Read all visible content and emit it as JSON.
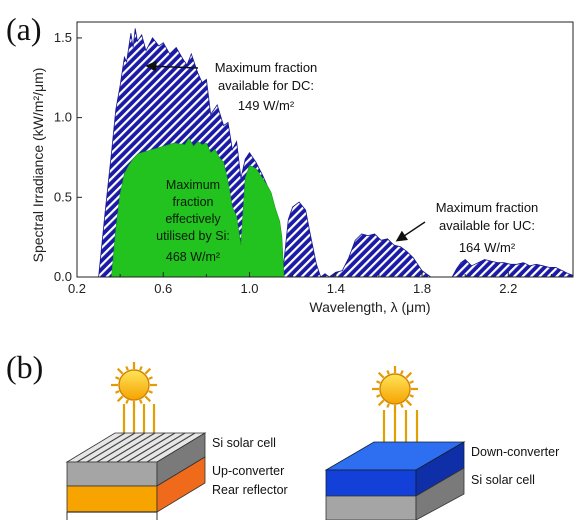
{
  "panel_a": {
    "label": "(a)"
  },
  "panel_b": {
    "label": "(b)"
  },
  "chart_data": {
    "type": "area",
    "xlabel": "Wavelength, λ (μm)",
    "ylabel": "Spectral Irradiance (kW/m²/μm)",
    "xlim": [
      0.2,
      2.5
    ],
    "ylim": [
      0.0,
      1.6
    ],
    "x_ticks": [
      "0.2",
      "0.6",
      "1.0",
      "1.4",
      "1.8",
      "2.2"
    ],
    "x_tick_values": [
      0.2,
      0.6,
      1.0,
      1.4,
      1.8,
      2.2
    ],
    "y_ticks": [
      "0.0",
      "0.5",
      "1.0",
      "1.5"
    ],
    "y_tick_values": [
      0.0,
      0.5,
      1.0,
      1.5
    ],
    "grid": false,
    "colors": {
      "total": "#1a1aa6",
      "si": "#22c31f",
      "hatch": "#ffffff"
    },
    "series": [
      {
        "x": [
          0.3,
          0.33,
          0.36,
          0.38,
          0.4,
          0.42,
          0.43,
          0.45,
          0.46,
          0.47,
          0.48,
          0.5,
          0.52,
          0.55,
          0.58,
          0.6,
          0.63,
          0.66,
          0.69,
          0.71,
          0.73,
          0.76,
          0.78,
          0.8,
          0.82,
          0.85,
          0.88,
          0.9,
          0.92,
          0.94,
          0.96,
          0.98,
          1.0,
          1.03,
          1.06,
          1.08,
          1.1,
          1.12,
          1.13,
          1.14,
          1.16,
          1.18,
          1.2,
          1.23,
          1.26,
          1.28,
          1.31,
          1.33,
          1.35,
          1.37,
          1.4,
          1.43,
          1.46,
          1.49,
          1.52,
          1.55,
          1.58,
          1.61,
          1.64,
          1.67,
          1.7,
          1.73,
          1.76,
          1.78,
          1.8,
          1.82,
          1.84,
          1.86,
          1.88,
          1.9,
          1.92,
          1.94,
          1.96,
          1.98,
          2.0,
          2.03,
          2.06,
          2.09,
          2.12,
          2.15,
          2.18,
          2.21,
          2.24,
          2.27,
          2.3,
          2.33,
          2.36,
          2.39,
          2.42,
          2.45,
          2.48,
          2.5
        ],
        "values": [
          0.0,
          0.4,
          0.78,
          1.05,
          1.2,
          1.38,
          1.35,
          1.53,
          1.44,
          1.56,
          1.48,
          1.52,
          1.42,
          1.5,
          1.45,
          1.47,
          1.4,
          1.44,
          1.37,
          1.33,
          1.4,
          1.28,
          1.22,
          1.24,
          1.02,
          1.08,
          0.95,
          0.97,
          0.8,
          0.85,
          0.62,
          0.74,
          0.78,
          0.72,
          0.64,
          0.58,
          0.47,
          0.28,
          0.08,
          0.06,
          0.1,
          0.36,
          0.44,
          0.47,
          0.42,
          0.28,
          0.08,
          0.0,
          0.02,
          0.0,
          0.03,
          0.04,
          0.12,
          0.23,
          0.27,
          0.26,
          0.27,
          0.23,
          0.24,
          0.2,
          0.19,
          0.16,
          0.12,
          0.08,
          0.04,
          0.02,
          0.0,
          0.0,
          0.0,
          0.0,
          0.0,
          0.0,
          0.05,
          0.09,
          0.11,
          0.07,
          0.09,
          0.11,
          0.1,
          0.09,
          0.09,
          0.08,
          0.08,
          0.09,
          0.07,
          0.08,
          0.07,
          0.06,
          0.06,
          0.04,
          0.02,
          0.01
        ]
      },
      {
        "x": [
          0.36,
          0.38,
          0.4,
          0.42,
          0.44,
          0.46,
          0.48,
          0.5,
          0.55,
          0.6,
          0.65,
          0.7,
          0.72,
          0.74,
          0.76,
          0.78,
          0.8,
          0.82,
          0.84,
          0.86,
          0.88,
          0.9,
          0.92,
          0.94,
          0.96,
          0.98,
          1.0,
          1.03,
          1.06,
          1.08,
          1.1,
          1.12,
          1.14,
          1.15,
          1.16
        ],
        "values": [
          0.0,
          0.3,
          0.52,
          0.65,
          0.7,
          0.74,
          0.77,
          0.78,
          0.8,
          0.82,
          0.84,
          0.83,
          0.87,
          0.82,
          0.85,
          0.83,
          0.84,
          0.78,
          0.8,
          0.75,
          0.72,
          0.6,
          0.44,
          0.38,
          0.2,
          0.62,
          0.7,
          0.68,
          0.62,
          0.58,
          0.53,
          0.43,
          0.35,
          0.25,
          0.0
        ]
      }
    ],
    "annotations": [
      {
        "lines": [
          "Maximum fraction",
          "available for DC:",
          "149 W/m²"
        ],
        "points_to_x": 0.48,
        "points_to_y": 1.47
      },
      {
        "lines": [
          "Maximum",
          "fraction",
          "effectively",
          "utilised by Si:",
          "468 W/m²"
        ]
      },
      {
        "lines": [
          "Maximum fraction",
          "available for UC:",
          "164 W/m²"
        ],
        "points_to_x": 1.6,
        "points_to_y": 0.26
      }
    ]
  },
  "diagram_b": {
    "left_stack": [
      "Si solar cell",
      "Up-converter",
      "Rear reflector"
    ],
    "right_stack": [
      "Down-converter",
      "Si solar cell"
    ]
  }
}
